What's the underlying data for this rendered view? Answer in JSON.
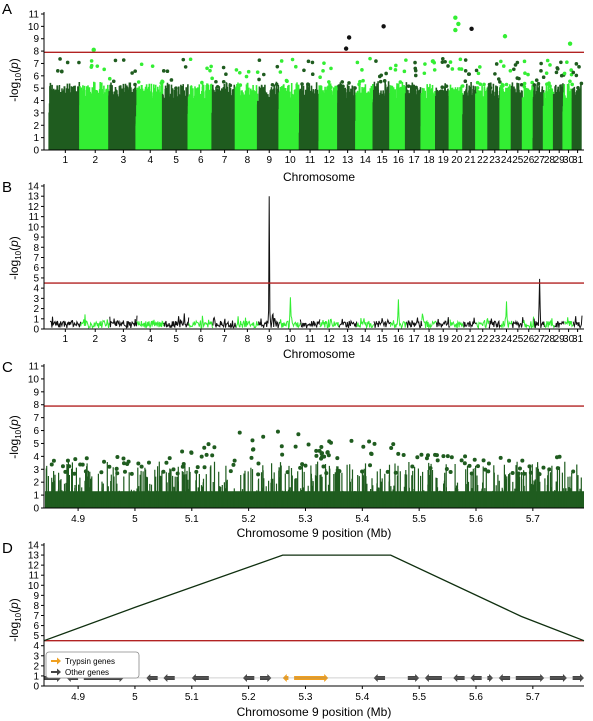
{
  "colors": {
    "dark_green": "#1f5c1f",
    "light_green": "#33ee33",
    "threshold": "#b22222",
    "trypsin": "#f0a020",
    "other_genes": "#444444",
    "outlier_dark": "#111111"
  },
  "chart_data": [
    {
      "panel": "A",
      "type": "scatter",
      "xlabel": "Chromosome",
      "ylabel": "-log10(p)",
      "ylim": [
        0,
        11
      ],
      "yticks": [
        0,
        1,
        2,
        3,
        4,
        5,
        6,
        7,
        8,
        9,
        10,
        11
      ],
      "threshold": 7.9,
      "chromosomes": [
        "1",
        "2",
        "3",
        "4",
        "5",
        "6",
        "7",
        "8",
        "9",
        "10",
        "11",
        "12",
        "13",
        "14",
        "15",
        "16",
        "17",
        "18",
        "19",
        "20",
        "21",
        "22",
        "23",
        "24",
        "25",
        "26",
        "27",
        "28",
        "29",
        "30",
        "31"
      ],
      "series_colors": [
        "dark_green",
        "light_green"
      ],
      "top_points": [
        {
          "chromosome": "2",
          "y": 8.1
        },
        {
          "chromosome": "13",
          "y": 9.1
        },
        {
          "chromosome": "13",
          "y": 8.2
        },
        {
          "chromosome": "15",
          "y": 10.0
        },
        {
          "chromosome": "20",
          "y": 10.7
        },
        {
          "chromosome": "20",
          "y": 10.2
        },
        {
          "chromosome": "20",
          "y": 9.7
        },
        {
          "chromosome": "21",
          "y": 9.8
        },
        {
          "chromosome": "24",
          "y": 9.2
        },
        {
          "chromosome": "30",
          "y": 8.6
        }
      ]
    },
    {
      "panel": "B",
      "type": "line",
      "xlabel": "Chromosome",
      "ylabel": "-log10(p)",
      "ylim": [
        0,
        14
      ],
      "yticks": [
        0,
        1,
        2,
        3,
        4,
        5,
        6,
        7,
        8,
        9,
        10,
        11,
        12,
        13,
        14
      ],
      "threshold": 4.5,
      "chromosomes": [
        "1",
        "2",
        "3",
        "4",
        "5",
        "6",
        "7",
        "8",
        "9",
        "10",
        "11",
        "12",
        "13",
        "14",
        "15",
        "16",
        "17",
        "18",
        "19",
        "20",
        "21",
        "22",
        "23",
        "24",
        "25",
        "26",
        "27",
        "28",
        "29",
        "30",
        "31"
      ],
      "peaks": [
        {
          "chromosome": "9",
          "y": 13.0
        },
        {
          "chromosome": "10",
          "y": 3.1
        },
        {
          "chromosome": "16",
          "y": 2.9
        },
        {
          "chromosome": "24",
          "y": 2.7
        },
        {
          "chromosome": "27",
          "y": 4.9
        }
      ]
    },
    {
      "panel": "C",
      "type": "scatter",
      "xlabel": "Chromosome 9 position (Mb)",
      "ylabel": "-log10(p)",
      "xlim": [
        4.84,
        5.79
      ],
      "xticks": [
        "4.9",
        "5",
        "5.1",
        "5.2",
        "5.3",
        "5.4",
        "5.5",
        "5.6",
        "5.7"
      ],
      "ylim": [
        0,
        11
      ],
      "yticks": [
        0,
        1,
        2,
        3,
        4,
        5,
        6,
        7,
        8,
        9,
        10,
        11
      ],
      "threshold": 7.9,
      "max_y": 6.2
    },
    {
      "panel": "D",
      "type": "line",
      "xlabel": "Chromosome 9 position (Mb)",
      "ylabel": "-log10(p)",
      "xlim": [
        4.84,
        5.79
      ],
      "xticks": [
        "4.9",
        "5",
        "5.1",
        "5.2",
        "5.3",
        "5.4",
        "5.5",
        "5.6",
        "5.7"
      ],
      "ylim": [
        0,
        14
      ],
      "yticks": [
        0,
        1,
        2,
        3,
        4,
        5,
        6,
        7,
        8,
        9,
        10,
        11,
        12,
        13,
        14
      ],
      "threshold": 4.5,
      "x": [
        4.84,
        5.0,
        5.26,
        5.45,
        5.68,
        5.79
      ],
      "y": [
        4.5,
        7.8,
        13.0,
        13.0,
        6.9,
        4.5
      ],
      "legend": [
        "Trypsin genes",
        "Other genes"
      ],
      "legend_position": "bottom-left",
      "genes": [
        {
          "start": 4.84,
          "end": 4.87,
          "type": "other",
          "dir": 1
        },
        {
          "start": 4.88,
          "end": 4.9,
          "type": "other",
          "dir": -1
        },
        {
          "start": 4.91,
          "end": 4.98,
          "type": "other",
          "dir": 1
        },
        {
          "start": 5.02,
          "end": 5.04,
          "type": "other",
          "dir": -1
        },
        {
          "start": 5.05,
          "end": 5.07,
          "type": "other",
          "dir": -1
        },
        {
          "start": 5.1,
          "end": 5.13,
          "type": "other",
          "dir": -1
        },
        {
          "start": 5.19,
          "end": 5.21,
          "type": "other",
          "dir": -1
        },
        {
          "start": 5.22,
          "end": 5.24,
          "type": "other",
          "dir": 1
        },
        {
          "start": 5.26,
          "end": 5.27,
          "type": "trypsin",
          "dir": -1
        },
        {
          "start": 5.28,
          "end": 5.34,
          "type": "trypsin",
          "dir": 1
        },
        {
          "start": 5.42,
          "end": 5.44,
          "type": "other",
          "dir": -1
        },
        {
          "start": 5.48,
          "end": 5.5,
          "type": "other",
          "dir": 1
        },
        {
          "start": 5.51,
          "end": 5.54,
          "type": "other",
          "dir": -1
        },
        {
          "start": 5.56,
          "end": 5.58,
          "type": "other",
          "dir": -1
        },
        {
          "start": 5.59,
          "end": 5.61,
          "type": "other",
          "dir": -1
        },
        {
          "start": 5.62,
          "end": 5.63,
          "type": "other",
          "dir": 1
        },
        {
          "start": 5.64,
          "end": 5.66,
          "type": "other",
          "dir": -1
        },
        {
          "start": 5.67,
          "end": 5.72,
          "type": "other",
          "dir": 1
        },
        {
          "start": 5.73,
          "end": 5.76,
          "type": "other",
          "dir": 1
        },
        {
          "start": 5.77,
          "end": 5.79,
          "type": "other",
          "dir": 1
        }
      ]
    }
  ]
}
